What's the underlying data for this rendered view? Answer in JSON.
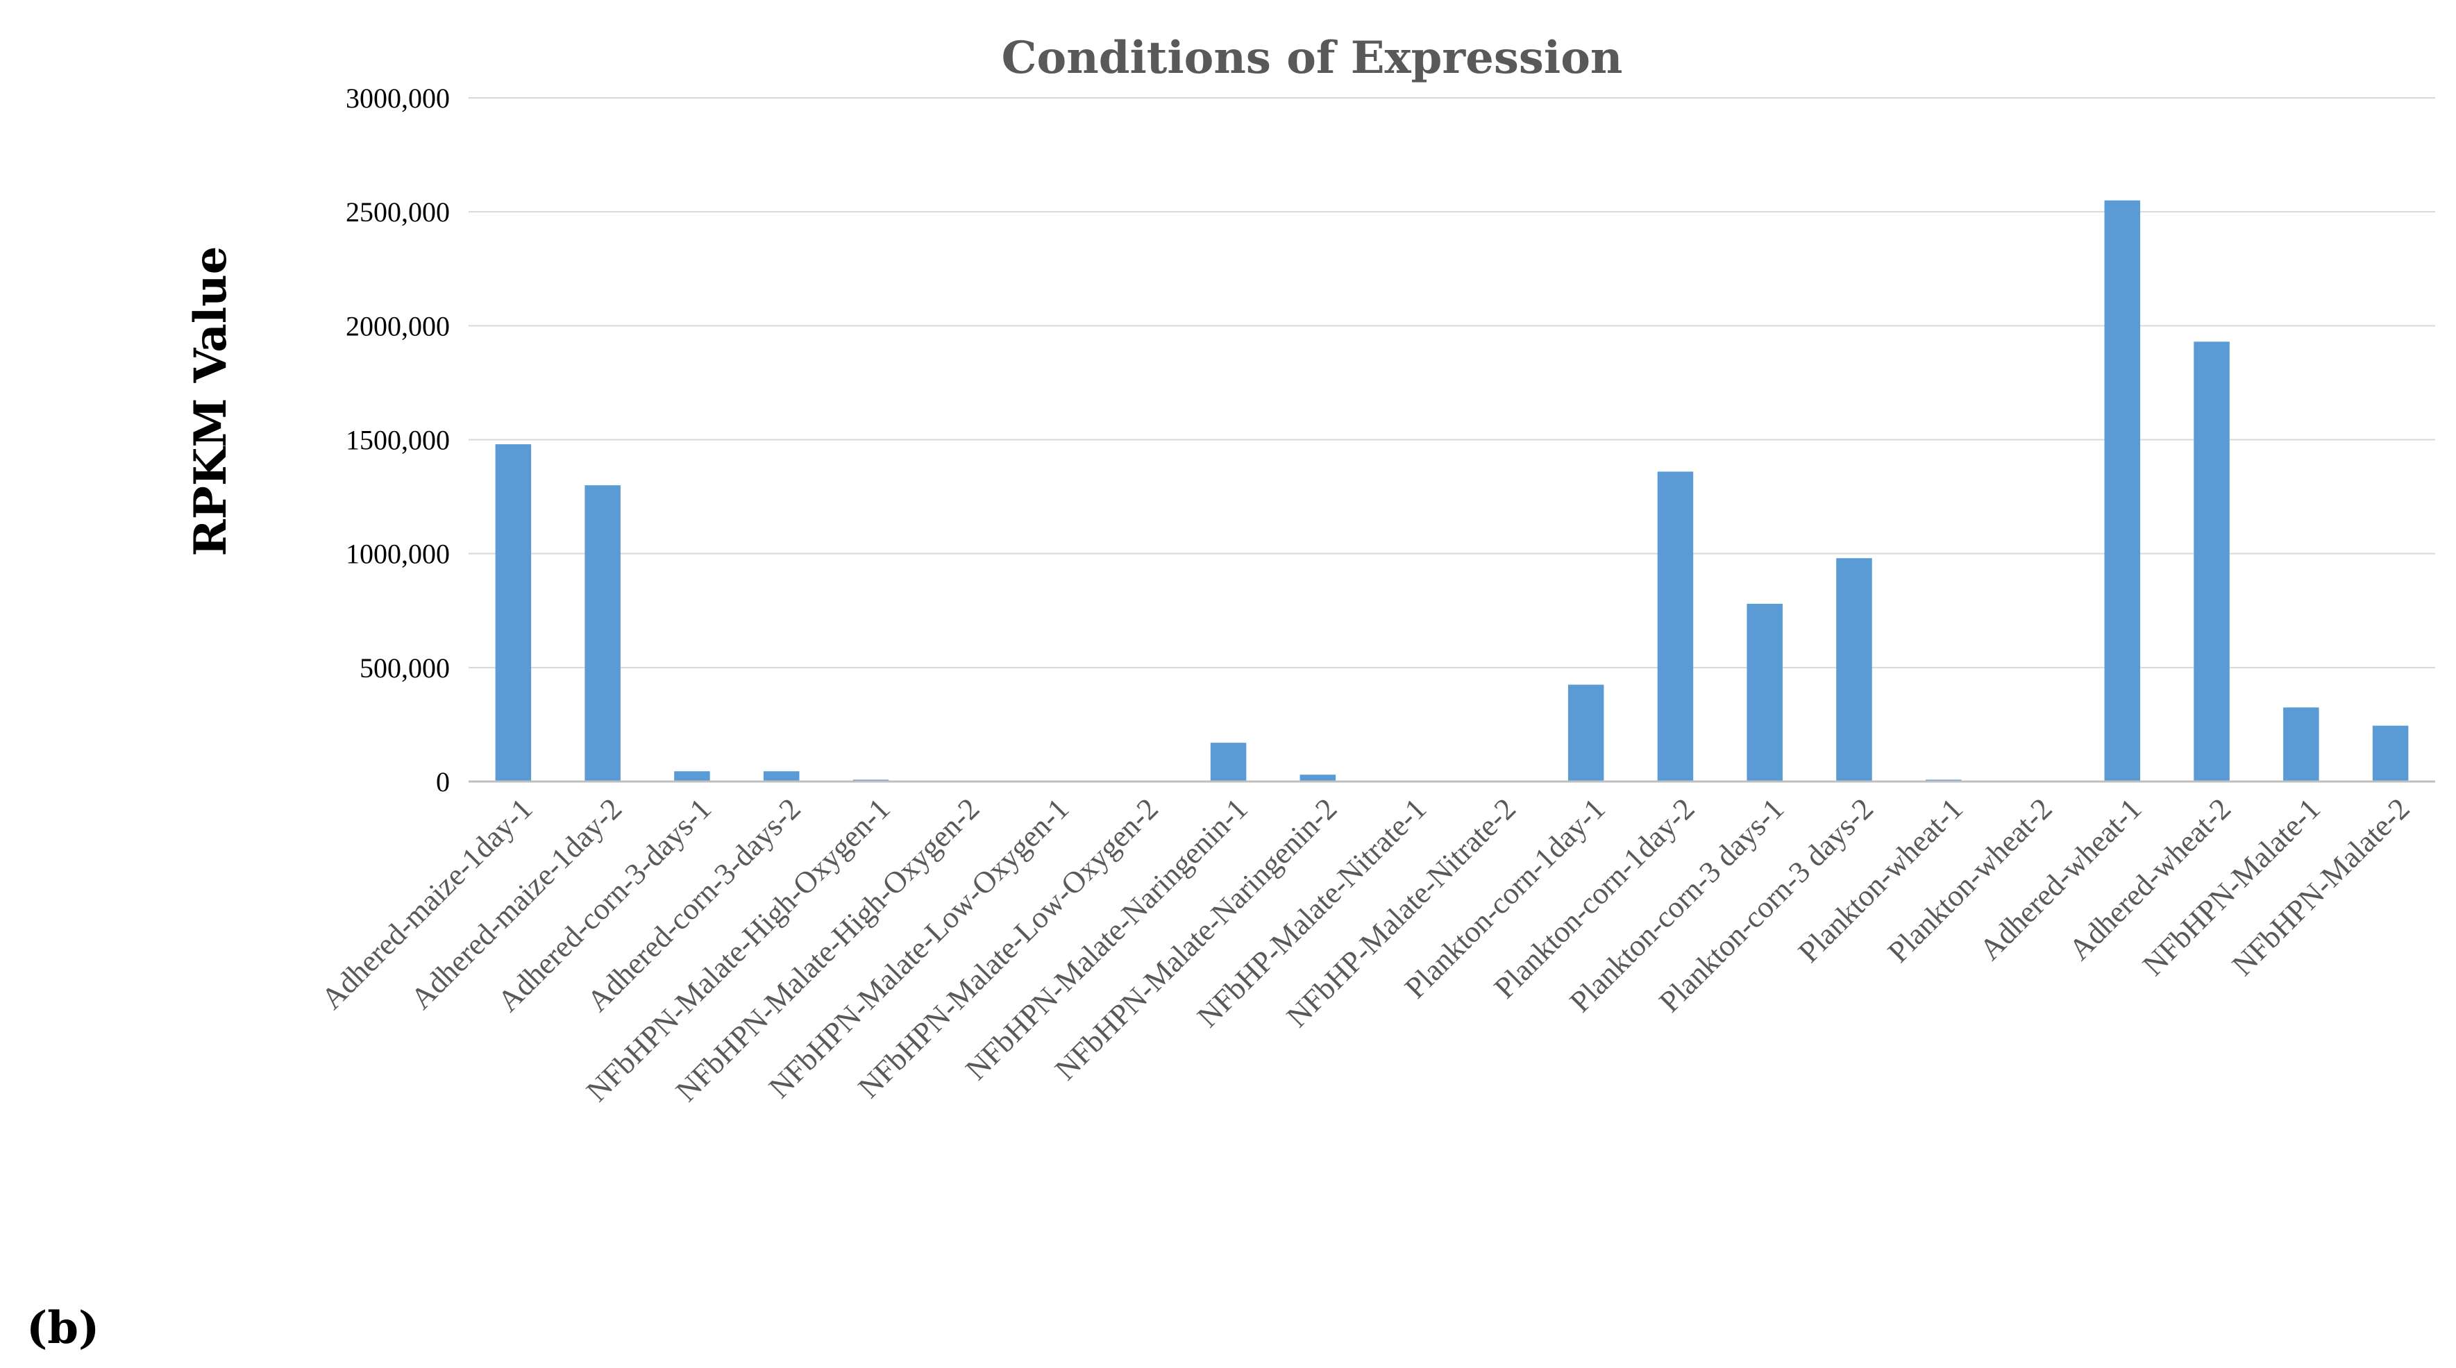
{
  "chart_data": {
    "type": "bar",
    "title": "Conditions of Expression",
    "xlabel": "",
    "ylabel": "RPKM Value",
    "ylim": [
      0,
      3000000
    ],
    "yticks": [
      0,
      500000,
      1000000,
      1500000,
      2000000,
      2500000,
      3000000
    ],
    "ytick_labels": [
      "0",
      "500,000",
      "1000,000",
      "1500,000",
      "2000,000",
      "2500,000",
      "3000,000"
    ],
    "grid": true,
    "color": "#5b9bd5",
    "categories": [
      "Adhered-maize-1day-1",
      "Adhered-maize-1day-2",
      "Adhered-corn-3-days-1",
      "Adhered-corn-3-days-2",
      "NFbHPN-Malate-High-Oxygen-1",
      "NFbHPN-Malate-High-Oxygen-2",
      "NFbHPN-Malate-Low-Oxygen-1",
      "NFbHPN-Malate-Low-Oxygen-2",
      "NFbHPN-Malate-Naringenin-1",
      "NFbHPN-Malate-Naringenin-2",
      "NFbHP-Malate-Nitrate-1",
      "NFbHP-Malate-Nitrate-2",
      "Plankton-corn-1day-1",
      "Plankton-corn-1day-2",
      "Plankton-corn-3 days-1",
      "Plankton-corn-3 days-2",
      "Plankton-wheat-1",
      "Plankton-wheat-2",
      "Adhered-wheat-1",
      "Adhered-wheat-2",
      "NFbHPN-Malate-1",
      "NFbHPN-Malate-2"
    ],
    "values": [
      1480000,
      1300000,
      45000,
      45000,
      8000,
      0,
      0,
      0,
      170000,
      30000,
      0,
      0,
      425000,
      1360000,
      780000,
      980000,
      8000,
      0,
      2550000,
      1930000,
      325000,
      245000
    ]
  },
  "panel_label": "(b)"
}
